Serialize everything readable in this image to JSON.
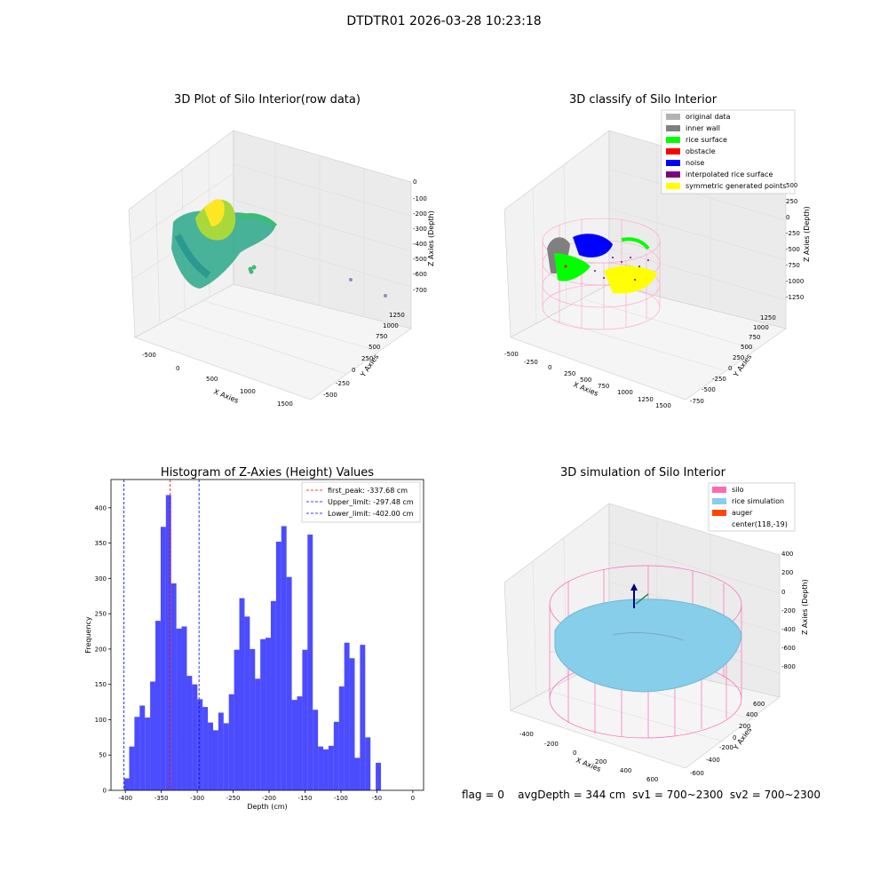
{
  "figure_title": "DTDTR01 2026-03-28 10:23:18",
  "footer": {
    "flag": "flag = 0",
    "avg_depth": "avgDepth = 344 cm",
    "sv1": "sv1 = 700~2300",
    "sv2": "sv2 = 700~2300"
  },
  "chart_data": [
    {
      "type": "scatter",
      "title": "3D Plot of Silo Interior(row data)",
      "xlabel": "X Axies",
      "ylabel": "Y Axies",
      "zlabel": "Z Axies (Depth)",
      "x_ticks": [
        "-500",
        "0",
        "500",
        "1000",
        "1500"
      ],
      "y_ticks": [
        "-500",
        "-250",
        "0",
        "250",
        "500",
        "750",
        "1000",
        "1250"
      ],
      "z_ticks": [
        "0",
        "-100",
        "-200",
        "-300",
        "-400",
        "-500",
        "-600",
        "-700"
      ],
      "colormap": "viridis"
    },
    {
      "type": "scatter",
      "title": "3D classify of Silo Interior",
      "xlabel": "X Axies",
      "ylabel": "Y Axies",
      "zlabel": "Z Axies (Depth)",
      "x_ticks": [
        "-500",
        "-250",
        "0",
        "250",
        "500",
        "750",
        "1000",
        "1250",
        "1500"
      ],
      "y_ticks": [
        "-750",
        "-500",
        "-250",
        "0",
        "250",
        "500",
        "750",
        "1000",
        "1250"
      ],
      "z_ticks": [
        "500",
        "250",
        "0",
        "-250",
        "-500",
        "-750",
        "-1000",
        "-1250"
      ],
      "legend_position": "top-right",
      "legend": [
        {
          "label": "original data",
          "color": "#b3b3b3"
        },
        {
          "label": "inner wall",
          "color": "#808080"
        },
        {
          "label": "rice surface",
          "color": "#00ff00"
        },
        {
          "label": "obstacle",
          "color": "#ff0000"
        },
        {
          "label": "noise",
          "color": "#0000ff"
        },
        {
          "label": "interpolated rice surface",
          "color": "#800080"
        },
        {
          "label": "symmetric generated points",
          "color": "#ffff00"
        }
      ]
    },
    {
      "type": "bar",
      "title": "Histogram of Z-Axies (Height) Values",
      "xlabel": "Depth (cm)",
      "ylabel": "Frequency",
      "xlim": [
        -420,
        15
      ],
      "ylim": [
        0,
        440
      ],
      "x_ticks": [
        -400,
        -350,
        -300,
        -250,
        -200,
        -150,
        -100,
        -50,
        0
      ],
      "y_ticks": [
        0,
        50,
        100,
        150,
        200,
        250,
        300,
        350,
        400
      ],
      "bar_color": "#0000ff",
      "bin_start": -402,
      "bin_width": 7.3,
      "values": [
        17,
        62,
        104,
        120,
        103,
        154,
        240,
        373,
        418,
        293,
        229,
        232,
        162,
        150,
        129,
        118,
        96,
        85,
        110,
        95,
        136,
        199,
        272,
        246,
        200,
        158,
        214,
        216,
        268,
        352,
        374,
        302,
        128,
        133,
        199,
        362,
        114,
        62,
        58,
        63,
        97,
        147,
        209,
        187,
        46,
        206,
        75,
        0,
        39
      ],
      "reference_lines": [
        {
          "label": "first_peak: -337.68 cm",
          "x": -337.68,
          "color": "#ff0000"
        },
        {
          "label": "Upper_limit: -297.48 cm",
          "x": -297.48,
          "color": "#0000ff"
        },
        {
          "label": "Lower_limit: -402.00 cm",
          "x": -402.0,
          "color": "#0000ff"
        }
      ],
      "legend_position": "top-right"
    },
    {
      "type": "scatter",
      "title": "3D simulation of Silo Interior",
      "xlabel": "X Axies",
      "ylabel": "Y Axies",
      "zlabel": "Z Axies (Depth)",
      "x_ticks": [
        "-400",
        "-200",
        "0",
        "200",
        "400",
        "600"
      ],
      "y_ticks": [
        "-600",
        "-400",
        "-200",
        "0",
        "200",
        "400",
        "600"
      ],
      "z_ticks": [
        "400",
        "200",
        "0",
        "-200",
        "-400",
        "-600",
        "-800"
      ],
      "legend_position": "top-right",
      "legend": [
        {
          "label": "silo",
          "color": "#ff69b4"
        },
        {
          "label": "rice simulation",
          "color": "#87ceeb"
        },
        {
          "label": "auger",
          "color": "#ff4500"
        },
        {
          "label": "center(118,-19)",
          "color": ""
        }
      ]
    }
  ]
}
